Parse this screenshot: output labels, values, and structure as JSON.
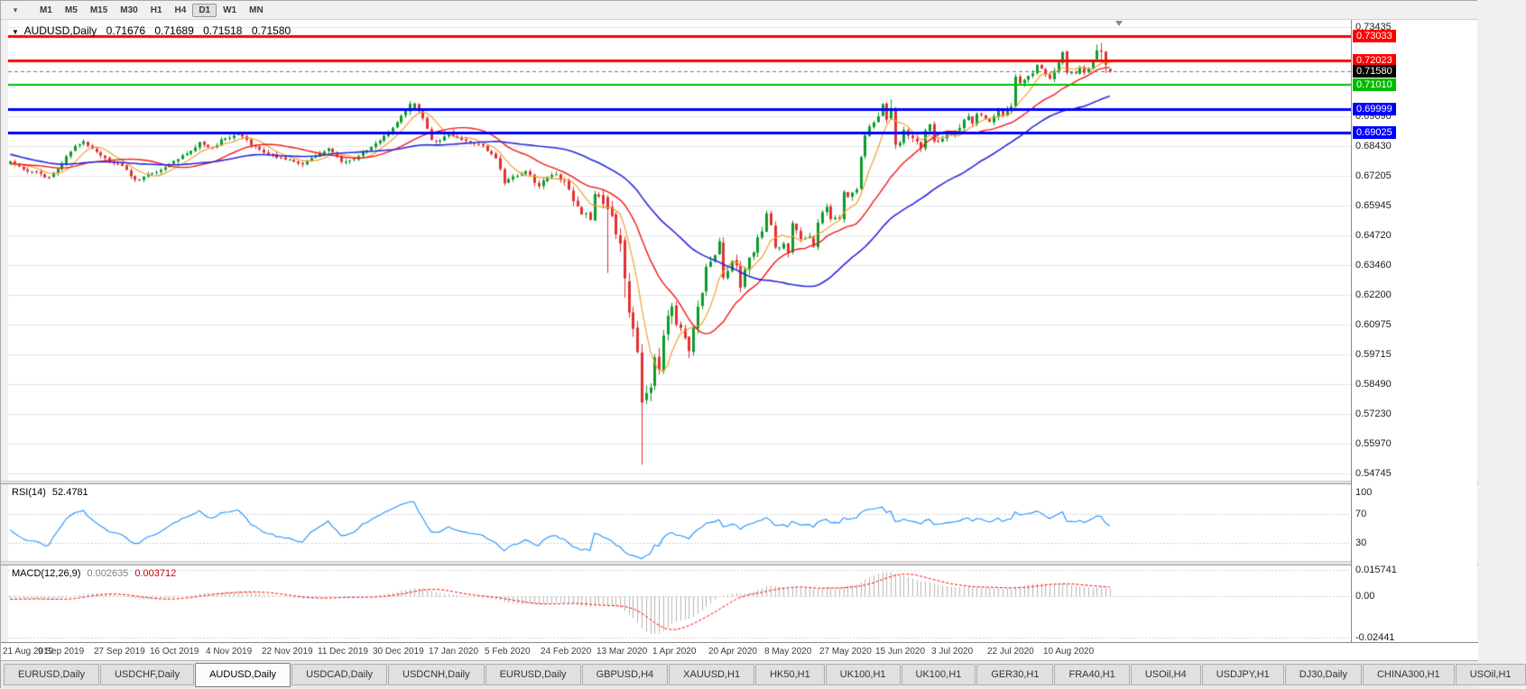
{
  "ui": {
    "toolbar": {
      "dropdown_icon": "▾",
      "timeframes": [
        "M1",
        "M5",
        "M15",
        "M30",
        "H1",
        "H4",
        "D1",
        "W1",
        "MN"
      ],
      "active_timeframe": "D1"
    },
    "header": {
      "dropdown_icon": "▼",
      "symbol": "AUDUSD,Daily",
      "open": "0.71676",
      "high": "0.71689",
      "low": "0.71518",
      "close": "0.71580"
    },
    "rsi": {
      "label": "RSI(14)",
      "value": "52.4781"
    },
    "macd": {
      "label": "MACD(12,26,9)",
      "main_value": "0.002635",
      "signal_value": "0.003712"
    },
    "tabs": {
      "items": [
        "EURUSD,Daily",
        "USDCHF,Daily",
        "AUDUSD,Daily",
        "USDCAD,Daily",
        "USDCNH,Daily",
        "EURUSD,Daily",
        "GBPUSD,H4",
        "XAUUSD,H1",
        "HK50,H1",
        "UK100,H1",
        "UK100,H1",
        "GER30,H1",
        "FRA40,H1",
        "USOil,H4",
        "USDJPY,H1",
        "DJ30,Daily",
        "CHINA300,H1",
        "USOil,H1"
      ],
      "active_index": 2
    }
  },
  "chart_data": {
    "type": "candlestick",
    "symbol": "AUDUSD",
    "timeframe": "Daily",
    "last_ohlc": {
      "open": 0.71676,
      "high": 0.71689,
      "low": 0.71518,
      "close": 0.7158
    },
    "bars": 257,
    "prehistory_bars": 60,
    "seed": 20200821,
    "plot_fraction": 0.822,
    "price_range": [
      0.5443,
      0.7373
    ],
    "colors": {
      "bull": "#0b9b2a",
      "bear": "#e33030",
      "grid": "#e6e6e6",
      "background": "#ffffff",
      "current_price_line": "#777777",
      "current_price_badge": "#000000"
    },
    "price_axis": {
      "visible_ticks": [
        0.73435,
        0.6969,
        0.6843,
        0.67205,
        0.65945,
        0.6472,
        0.6346,
        0.622,
        0.60975,
        0.59715,
        0.5849,
        0.5723,
        0.5597,
        0.54745
      ]
    },
    "horizontal_lines": [
      {
        "price": 0.73033,
        "label": "0.73033",
        "color": "#ff0000",
        "width": 3
      },
      {
        "price": 0.72023,
        "label": "0.72023",
        "color": "#ff0000",
        "width": 3
      },
      {
        "price": 0.7101,
        "label": "0.71010",
        "color": "#00bb00",
        "width": 2
      },
      {
        "price": 0.69999,
        "label": "0.69999",
        "color": "#0000ff",
        "width": 3
      },
      {
        "price": 0.69025,
        "label": "0.69025",
        "color": "#0000ff",
        "width": 3
      }
    ],
    "current_price": {
      "value": 0.7158,
      "label": "0.71580"
    },
    "moving_averages": [
      {
        "period": 7,
        "type": "sma",
        "color": "#f0a030",
        "width": 1.2
      },
      {
        "period": 20,
        "type": "sma",
        "color": "#f01818",
        "width": 1.4
      },
      {
        "period": 45,
        "type": "sma",
        "color": "#2828dc",
        "width": 1.6
      }
    ],
    "x_labels": [
      {
        "bar": 0,
        "text": "21 Aug 2019"
      },
      {
        "bar": 13,
        "text": "9 Sep 2019"
      },
      {
        "bar": 26,
        "text": "27 Sep 2019"
      },
      {
        "bar": 39,
        "text": "16 Oct 2019"
      },
      {
        "bar": 52,
        "text": "4 Nov 2019"
      },
      {
        "bar": 65,
        "text": "22 Nov 2019"
      },
      {
        "bar": 78,
        "text": "11 Dec 2019"
      },
      {
        "bar": 91,
        "text": "30 Dec 2019"
      },
      {
        "bar": 104,
        "text": "17 Jan 2020"
      },
      {
        "bar": 117,
        "text": "5 Feb 2020"
      },
      {
        "bar": 130,
        "text": "24 Feb 2020"
      },
      {
        "bar": 143,
        "text": "13 Mar 2020"
      },
      {
        "bar": 156,
        "text": "1 Apr 2020"
      },
      {
        "bar": 169,
        "text": "20 Apr 2020"
      },
      {
        "bar": 182,
        "text": "8 May 2020"
      },
      {
        "bar": 195,
        "text": "27 May 2020"
      },
      {
        "bar": 208,
        "text": "15 Jun 2020"
      },
      {
        "bar": 221,
        "text": "3 Jul 2020"
      },
      {
        "bar": 234,
        "text": "22 Jul 2020"
      },
      {
        "bar": 247,
        "text": "10 Aug 2020"
      }
    ],
    "close_anchors": [
      [
        -60,
        0.693
      ],
      [
        -52,
        0.6975
      ],
      [
        -45,
        0.699
      ],
      [
        -38,
        0.689
      ],
      [
        -32,
        0.68
      ],
      [
        -26,
        0.6765
      ],
      [
        -20,
        0.682
      ],
      [
        -14,
        0.675
      ],
      [
        -8,
        0.6785
      ],
      [
        -4,
        0.676
      ],
      [
        0,
        0.6776
      ],
      [
        3,
        0.6748
      ],
      [
        6,
        0.6732
      ],
      [
        9,
        0.6712
      ],
      [
        12,
        0.6772
      ],
      [
        15,
        0.6845
      ],
      [
        17,
        0.6862
      ],
      [
        20,
        0.6815
      ],
      [
        23,
        0.6775
      ],
      [
        26,
        0.6758
      ],
      [
        29,
        0.67
      ],
      [
        32,
        0.6722
      ],
      [
        35,
        0.6748
      ],
      [
        38,
        0.6782
      ],
      [
        41,
        0.6812
      ],
      [
        44,
        0.6858
      ],
      [
        47,
        0.6838
      ],
      [
        50,
        0.688
      ],
      [
        53,
        0.6892
      ],
      [
        56,
        0.6852
      ],
      [
        59,
        0.682
      ],
      [
        62,
        0.6796
      ],
      [
        65,
        0.6785
      ],
      [
        68,
        0.6772
      ],
      [
        71,
        0.6802
      ],
      [
        74,
        0.6838
      ],
      [
        77,
        0.6778
      ],
      [
        80,
        0.6792
      ],
      [
        83,
        0.6832
      ],
      [
        86,
        0.6872
      ],
      [
        89,
        0.6922
      ],
      [
        92,
        0.6992
      ],
      [
        94,
        0.7018
      ],
      [
        96,
        0.6958
      ],
      [
        98,
        0.6872
      ],
      [
        100,
        0.6866
      ],
      [
        102,
        0.69
      ],
      [
        104,
        0.6882
      ],
      [
        107,
        0.6852
      ],
      [
        110,
        0.6846
      ],
      [
        113,
        0.6792
      ],
      [
        115,
        0.6692
      ],
      [
        118,
        0.6722
      ],
      [
        120,
        0.6745
      ],
      [
        123,
        0.6672
      ],
      [
        125,
        0.6715
      ],
      [
        127,
        0.6722
      ],
      [
        129,
        0.67
      ],
      [
        131,
        0.6622
      ],
      [
        133,
        0.6562
      ],
      [
        135,
        0.6545
      ],
      [
        136,
        0.6632
      ],
      [
        137,
        0.6645
      ],
      [
        138,
        0.6602
      ],
      [
        139,
        0.658
      ],
      [
        140,
        0.6562
      ],
      [
        141,
        0.6482
      ],
      [
        142,
        0.6452
      ],
      [
        143,
        0.629
      ],
      [
        144,
        0.6162
      ],
      [
        145,
        0.6095
      ],
      [
        146,
        0.5992
      ],
      [
        147,
        0.577
      ],
      [
        148,
        0.5802
      ],
      [
        149,
        0.5835
      ],
      [
        150,
        0.5965
      ],
      [
        151,
        0.5902
      ],
      [
        152,
        0.6062
      ],
      [
        153,
        0.614
      ],
      [
        154,
        0.6165
      ],
      [
        155,
        0.6082
      ],
      [
        156,
        0.607
      ],
      [
        157,
        0.6042
      ],
      [
        158,
        0.5995
      ],
      [
        159,
        0.6075
      ],
      [
        160,
        0.6165
      ],
      [
        161,
        0.6232
      ],
      [
        162,
        0.6335
      ],
      [
        164,
        0.6382
      ],
      [
        165,
        0.6435
      ],
      [
        166,
        0.6292
      ],
      [
        167,
        0.6325
      ],
      [
        168,
        0.6365
      ],
      [
        169,
        0.6335
      ],
      [
        170,
        0.6255
      ],
      [
        171,
        0.6322
      ],
      [
        172,
        0.6372
      ],
      [
        173,
        0.6395
      ],
      [
        174,
        0.6465
      ],
      [
        175,
        0.6495
      ],
      [
        176,
        0.6555
      ],
      [
        177,
        0.6515
      ],
      [
        178,
        0.6418
      ],
      [
        179,
        0.6425
      ],
      [
        180,
        0.6432
      ],
      [
        181,
        0.6402
      ],
      [
        182,
        0.653
      ],
      [
        184,
        0.6458
      ],
      [
        186,
        0.6462
      ],
      [
        187,
        0.6418
      ],
      [
        188,
        0.6525
      ],
      [
        190,
        0.6595
      ],
      [
        191,
        0.6538
      ],
      [
        193,
        0.6538
      ],
      [
        194,
        0.665
      ],
      [
        195,
        0.6625
      ],
      [
        197,
        0.6665
      ],
      [
        198,
        0.68
      ],
      [
        199,
        0.6895
      ],
      [
        200,
        0.692
      ],
      [
        202,
        0.6968
      ],
      [
        203,
        0.7015
      ],
      [
        204,
        0.696
      ],
      [
        205,
        0.7
      ],
      [
        206,
        0.685
      ],
      [
        207,
        0.6862
      ],
      [
        208,
        0.692
      ],
      [
        209,
        0.6885
      ],
      [
        211,
        0.6855
      ],
      [
        212,
        0.6835
      ],
      [
        213,
        0.6905
      ],
      [
        214,
        0.693
      ],
      [
        215,
        0.6865
      ],
      [
        217,
        0.6868
      ],
      [
        219,
        0.6902
      ],
      [
        221,
        0.6925
      ],
      [
        223,
        0.6975
      ],
      [
        224,
        0.6945
      ],
      [
        225,
        0.6985
      ],
      [
        227,
        0.6952
      ],
      [
        228,
        0.694
      ],
      [
        230,
        0.701
      ],
      [
        231,
        0.6972
      ],
      [
        233,
        0.7015
      ],
      [
        234,
        0.714
      ],
      [
        235,
        0.7102
      ],
      [
        237,
        0.714
      ],
      [
        238,
        0.7155
      ],
      [
        239,
        0.719
      ],
      [
        241,
        0.7145
      ],
      [
        242,
        0.7122
      ],
      [
        244,
        0.72
      ],
      [
        245,
        0.7235
      ],
      [
        246,
        0.7158
      ],
      [
        248,
        0.7145
      ],
      [
        249,
        0.7165
      ],
      [
        250,
        0.7148
      ],
      [
        251,
        0.7172
      ],
      [
        252,
        0.7205
      ],
      [
        253,
        0.7245
      ],
      [
        254,
        0.724
      ],
      [
        255,
        0.7185
      ],
      [
        256,
        0.7158
      ]
    ],
    "vol_anchors": [
      [
        -60,
        0.0026
      ],
      [
        120,
        0.0026
      ],
      [
        133,
        0.0045
      ],
      [
        140,
        0.0075
      ],
      [
        152,
        0.0075
      ],
      [
        160,
        0.0055
      ],
      [
        175,
        0.0042
      ],
      [
        195,
        0.0033
      ],
      [
        210,
        0.0038
      ],
      [
        256,
        0.0028
      ]
    ],
    "candle_overrides": [
      {
        "i": 93,
        "o": 0.699,
        "h": 0.7032,
        "l": 0.6975,
        "c": 0.7021
      },
      {
        "i": 139,
        "o": 0.663,
        "h": 0.664,
        "l": 0.6313,
        "c": 0.658
      },
      {
        "i": 143,
        "o": 0.645,
        "h": 0.6465,
        "l": 0.621,
        "c": 0.629
      },
      {
        "i": 147,
        "o": 0.598,
        "h": 0.6015,
        "l": 0.551,
        "c": 0.577
      },
      {
        "i": 205,
        "o": 0.696,
        "h": 0.704,
        "l": 0.6955,
        "c": 0.7
      },
      {
        "i": 206,
        "o": 0.7,
        "h": 0.7008,
        "l": 0.6832,
        "c": 0.685
      },
      {
        "i": 253,
        "o": 0.7208,
        "h": 0.727,
        "l": 0.72,
        "c": 0.7245
      },
      {
        "i": 254,
        "o": 0.7245,
        "h": 0.7276,
        "l": 0.7205,
        "c": 0.724
      },
      {
        "i": 255,
        "o": 0.724,
        "h": 0.7242,
        "l": 0.715,
        "c": 0.7185
      },
      {
        "i": 256,
        "o": 0.71676,
        "h": 0.71689,
        "l": 0.71518,
        "c": 0.7158
      }
    ],
    "rsi": {
      "period": 14,
      "current": "52.4781",
      "color": "#1e90ff",
      "levels": [
        70,
        30
      ],
      "axis_labels": [
        100,
        70,
        30
      ],
      "range": [
        5,
        111
      ]
    },
    "macd": {
      "fast": 12,
      "slow": 26,
      "signal": 9,
      "current_main": "0.002635",
      "current_signal": "0.003712",
      "histogram_color": "#b4b4b4",
      "signal_color": "#ff0000",
      "axis": [
        {
          "value": 0.015741,
          "label": "0.015741"
        },
        {
          "value": 0,
          "label": "0.00"
        },
        {
          "value": -0.02441,
          "label": "-0.02441"
        }
      ],
      "range": [
        -0.02707,
        0.01841
      ]
    }
  }
}
